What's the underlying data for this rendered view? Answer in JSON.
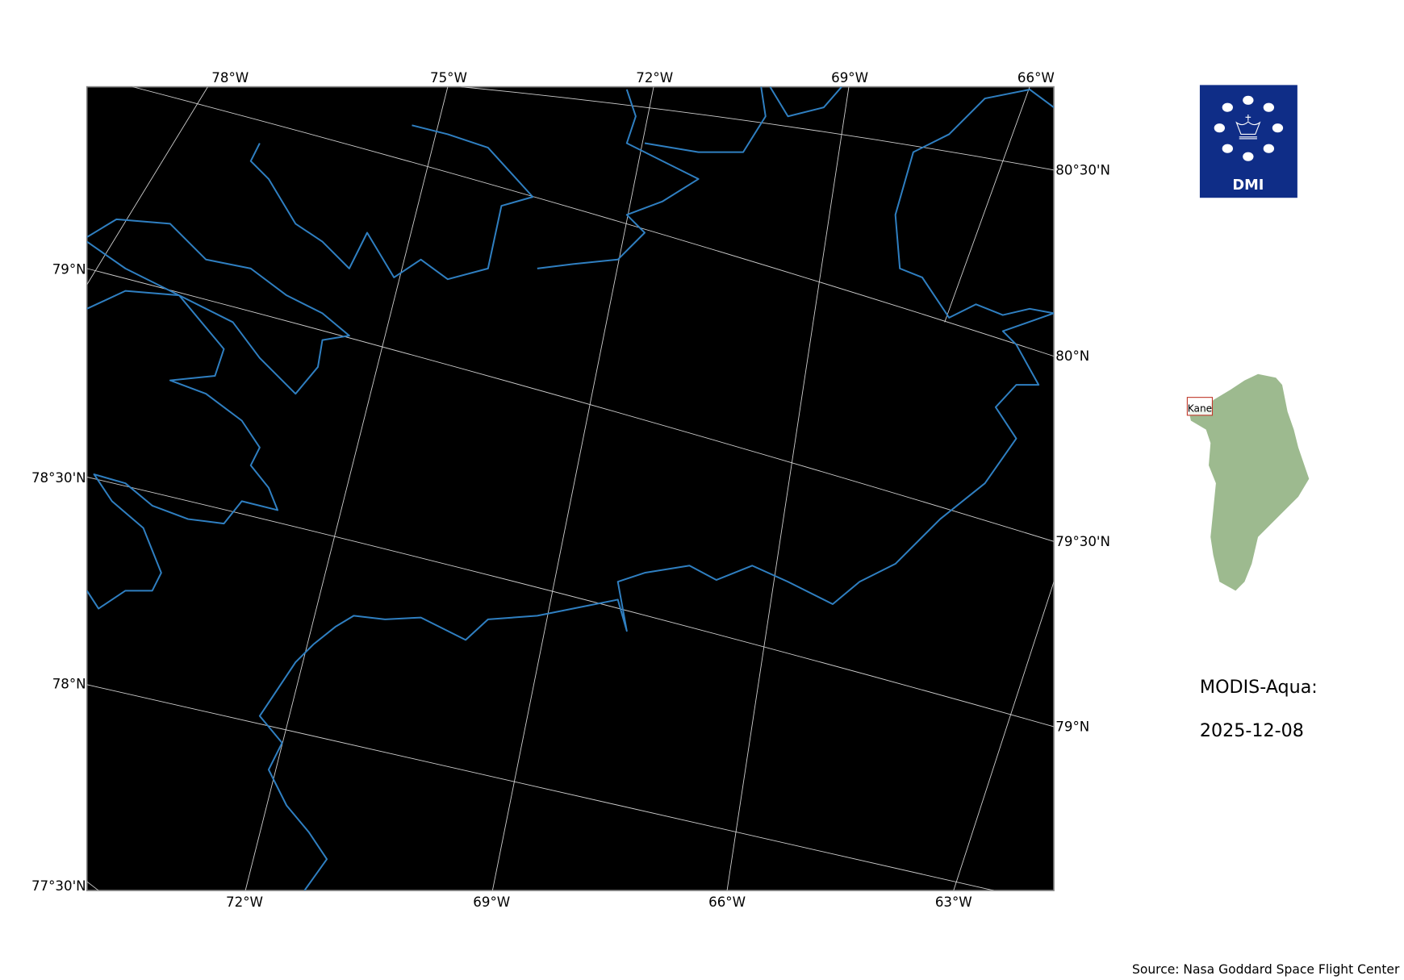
{
  "map": {
    "region": "Kane",
    "background_color": "#000000",
    "coastline_color": "#2f7fc1",
    "graticule_color": "#d0d0d0",
    "top_lon_labels": [
      "78°W",
      "75°W",
      "72°W",
      "69°W",
      "66°W"
    ],
    "bottom_lon_labels": [
      "72°W",
      "69°W",
      "66°W",
      "63°W"
    ],
    "left_lat_labels": [
      "79°N",
      "78°30'N",
      "78°N",
      "77°30'N"
    ],
    "right_lat_labels": [
      "80°30'N",
      "80°N",
      "79°30'N",
      "79°N"
    ]
  },
  "logo": {
    "text": "DMI",
    "color": "#0f2d87"
  },
  "inset": {
    "label": "Kane",
    "land_color": "#9dba8f",
    "box_color": "#c0392b"
  },
  "title": {
    "sensor": "MODIS-Aqua:",
    "date": "2025-12-08"
  },
  "source": "Source: Nasa Goddard Space Flight Center"
}
